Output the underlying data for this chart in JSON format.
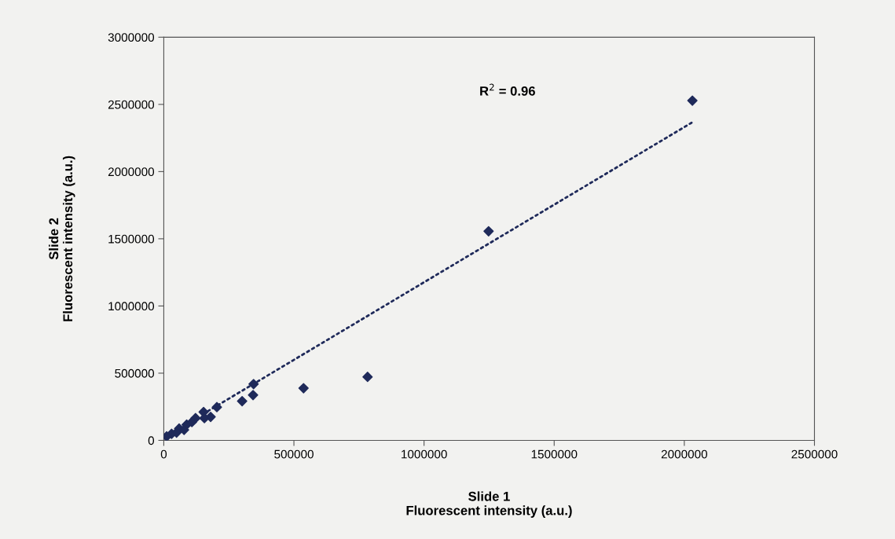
{
  "chart_data": {
    "type": "scatter",
    "xlabel": "Slide 1\nFluorescent intensity (a.u.)",
    "ylabel": "Slide 2\nFluorescent intensity (a.u.)",
    "annotations": [
      "R$^{2}$ = 0.96"
    ],
    "xlim": [
      0,
      2500000
    ],
    "xticks": [
      0,
      500000,
      1000000,
      1500000,
      2000000,
      2500000
    ],
    "ylim": [
      0,
      3000000
    ],
    "yticks": [
      0,
      500000,
      1000000,
      1500000,
      2000000,
      2500000,
      3000000
    ],
    "grid": false,
    "series": [
      {
        "marker": "diamond",
        "color": "#1f2a5a",
        "x": [
          2031000,
          1248000,
          783000,
          537000,
          345000,
          343000,
          301000,
          204000,
          153000,
          180000,
          122000,
          88000,
          59000,
          30000,
          11000,
          108000,
          78000,
          156000,
          49000
        ],
        "values": [
          2528000,
          1556000,
          472000,
          388000,
          419000,
          337000,
          292000,
          247000,
          211000,
          175000,
          165000,
          117000,
          88000,
          49000,
          29000,
          136000,
          78000,
          165000,
          58000
        ]
      },
      {
        "type": "line",
        "color": "#1f2a5a",
        "line_style": "dotted",
        "x": [
          150000,
          2031000
        ],
        "values": [
          195000,
          2367000
        ]
      }
    ]
  }
}
